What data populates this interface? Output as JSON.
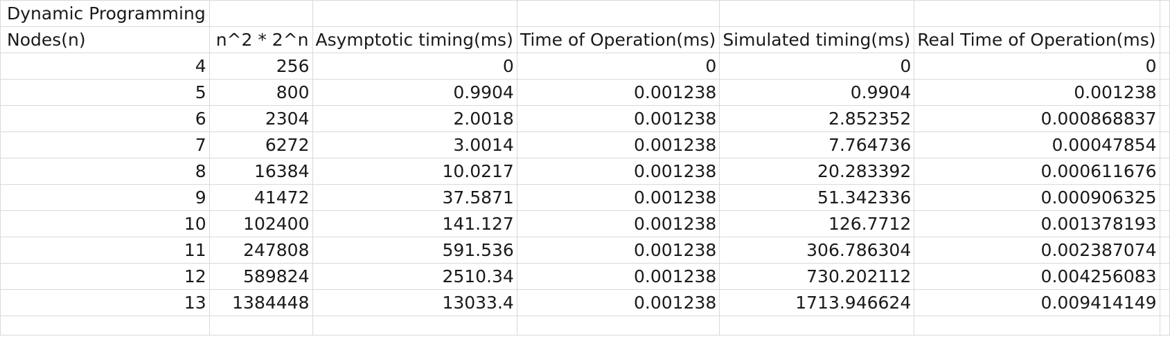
{
  "sheet": {
    "title": "Dynamic Programming",
    "headers": [
      "Nodes(n)",
      "n^2 * 2^n",
      "Asymptotic timing(ms)",
      "Time of Operation(ms)",
      "Simulated timing(ms)",
      "Real Time of Operation(ms)"
    ],
    "rows": [
      [
        "4",
        "256",
        "0",
        "0",
        "0",
        "0"
      ],
      [
        "5",
        "800",
        "0.9904",
        "0.001238",
        "0.9904",
        "0.001238"
      ],
      [
        "6",
        "2304",
        "2.0018",
        "0.001238",
        "2.852352",
        "0.000868837"
      ],
      [
        "7",
        "6272",
        "3.0014",
        "0.001238",
        "7.764736",
        "0.00047854"
      ],
      [
        "8",
        "16384",
        "10.0217",
        "0.001238",
        "20.283392",
        "0.000611676"
      ],
      [
        "9",
        "41472",
        "37.5871",
        "0.001238",
        "51.342336",
        "0.000906325"
      ],
      [
        "10",
        "102400",
        "141.127",
        "0.001238",
        "126.7712",
        "0.001378193"
      ],
      [
        "11",
        "247808",
        "591.536",
        "0.001238",
        "306.786304",
        "0.002387074"
      ],
      [
        "12",
        "589824",
        "2510.34",
        "0.001238",
        "730.202112",
        "0.004256083"
      ],
      [
        "13",
        "1384448",
        "13033.4",
        "0.001238",
        "1713.946624",
        "0.009414149"
      ]
    ]
  }
}
